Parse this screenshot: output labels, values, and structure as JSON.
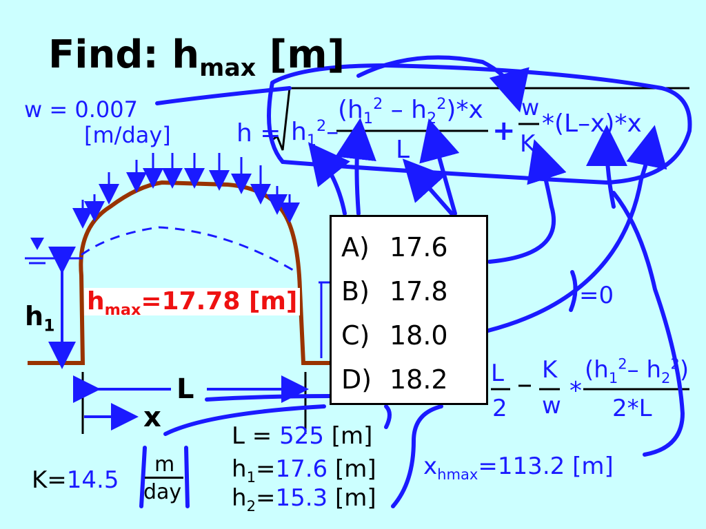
{
  "title": {
    "prefix": "Find:",
    "var": "h",
    "sub": "max",
    "unit": "[m]"
  },
  "given": {
    "w_label": "w",
    "w_value": "0.007",
    "w_unit": "[m/day]",
    "L_label": "L",
    "L_value": "525",
    "L_unit": "[m]",
    "h1_label": "h",
    "h1_sub": "1",
    "h1_value": "17.6",
    "h1_unit": "[m]",
    "h2_label": "h",
    "h2_sub": "2",
    "h2_value": "15.3",
    "h2_unit": "[m]",
    "K_label": "K",
    "K_value": "14.5",
    "K_unit_num": "m",
    "K_unit_den": "day"
  },
  "result": {
    "var": "h",
    "sub": "max",
    "value": "17.78",
    "unit": "[m]",
    "xh_var": "x",
    "xh_sub": "hmax",
    "xh_value": "113.2",
    "xh_unit": "[m]",
    "zero": "=0"
  },
  "diagram": {
    "h1": "h",
    "h1_sub": "1",
    "L": "L",
    "x": "x"
  },
  "equation": {
    "lhs": "h",
    "h1sq": "h",
    "num": "(h",
    "minus": "–",
    "star_x": ")*x",
    "den": "L",
    "plus": "+",
    "w": "w",
    "K": "K",
    "tail": "*(L–x)*x"
  },
  "xeq": {
    "L": "L",
    "two": "2",
    "K": "K",
    "w": "w",
    "num": "(h",
    "den": "2*L"
  },
  "choices": [
    {
      "label": "A)",
      "value": "17.6"
    },
    {
      "label": "B)",
      "value": "17.8"
    },
    {
      "label": "C)",
      "value": "18.0"
    },
    {
      "label": "D)",
      "value": "18.2"
    }
  ],
  "colors": {
    "background": "#ccffff",
    "ink": "#1a1aff",
    "answer": "#ee1111",
    "ground": "#993300"
  }
}
